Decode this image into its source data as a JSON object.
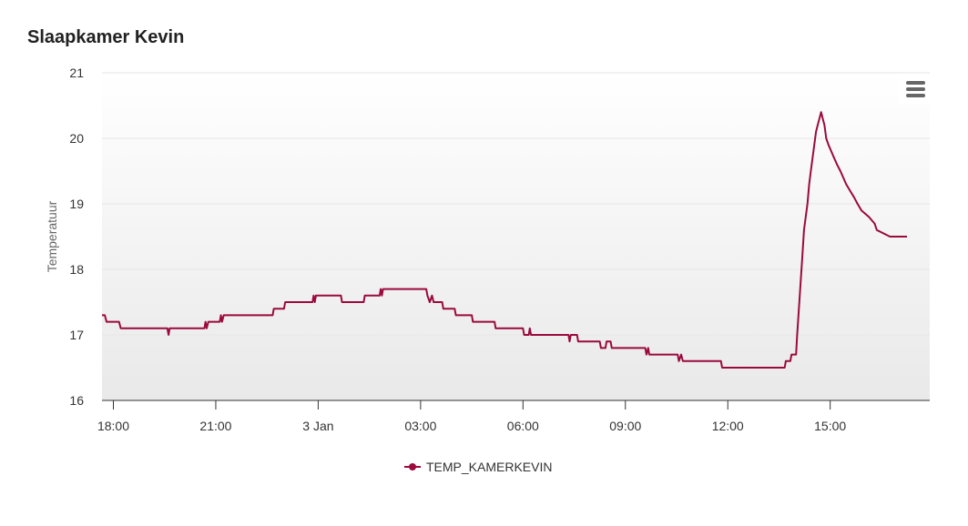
{
  "card": {
    "title": "Slaapkamer Kevin"
  },
  "menu": {
    "icon": "hamburger-menu-icon"
  },
  "colors": {
    "series": "#9a0a3d",
    "plot_bg_top": "#ffffff",
    "plot_bg_bottom": "#e9e9e9",
    "grid": "#e6e6e6",
    "axis": "#333333"
  },
  "chart_data": {
    "type": "line",
    "title": "Slaapkamer Kevin",
    "xlabel": "",
    "ylabel": "Temperatuur",
    "ylim": [
      16,
      21
    ],
    "yticks": [
      16,
      17,
      18,
      19,
      20,
      21
    ],
    "xlim": [
      "2024-01-02T17:40",
      "2024-01-03T17:55"
    ],
    "xticks": [
      {
        "t": "2024-01-02T18:00",
        "label": "18:00"
      },
      {
        "t": "2024-01-02T21:00",
        "label": "21:00"
      },
      {
        "t": "2024-01-03T00:00",
        "label": "3 Jan"
      },
      {
        "t": "2024-01-03T03:00",
        "label": "03:00"
      },
      {
        "t": "2024-01-03T06:00",
        "label": "06:00"
      },
      {
        "t": "2024-01-03T09:00",
        "label": "09:00"
      },
      {
        "t": "2024-01-03T12:00",
        "label": "12:00"
      },
      {
        "t": "2024-01-03T15:00",
        "label": "15:00"
      }
    ],
    "grid": true,
    "legend_position": "bottom-center",
    "series": [
      {
        "name": "TEMP_KAMERKEVIN",
        "points": [
          [
            "2024-01-02T17:40",
            17.3
          ],
          [
            "2024-01-02T17:45",
            17.3
          ],
          [
            "2024-01-02T17:48",
            17.2
          ],
          [
            "2024-01-02T18:10",
            17.2
          ],
          [
            "2024-01-02T18:13",
            17.1
          ],
          [
            "2024-01-02T19:35",
            17.1
          ],
          [
            "2024-01-02T19:37",
            17.0
          ],
          [
            "2024-01-02T19:39",
            17.1
          ],
          [
            "2024-01-02T20:40",
            17.1
          ],
          [
            "2024-01-02T20:42",
            17.2
          ],
          [
            "2024-01-02T20:44",
            17.1
          ],
          [
            "2024-01-02T20:47",
            17.2
          ],
          [
            "2024-01-02T21:07",
            17.2
          ],
          [
            "2024-01-02T21:09",
            17.3
          ],
          [
            "2024-01-02T21:11",
            17.2
          ],
          [
            "2024-01-02T21:14",
            17.3
          ],
          [
            "2024-01-02T22:40",
            17.3
          ],
          [
            "2024-01-02T22:42",
            17.4
          ],
          [
            "2024-01-02T23:00",
            17.4
          ],
          [
            "2024-01-02T23:02",
            17.5
          ],
          [
            "2024-01-02T23:50",
            17.5
          ],
          [
            "2024-01-02T23:52",
            17.6
          ],
          [
            "2024-01-02T23:54",
            17.5
          ],
          [
            "2024-01-02T23:56",
            17.6
          ],
          [
            "2024-01-03T00:40",
            17.6
          ],
          [
            "2024-01-03T00:42",
            17.5
          ],
          [
            "2024-01-03T01:20",
            17.5
          ],
          [
            "2024-01-03T01:22",
            17.6
          ],
          [
            "2024-01-03T01:48",
            17.6
          ],
          [
            "2024-01-03T01:50",
            17.7
          ],
          [
            "2024-01-03T01:52",
            17.6
          ],
          [
            "2024-01-03T01:54",
            17.7
          ],
          [
            "2024-01-03T03:10",
            17.7
          ],
          [
            "2024-01-03T03:12",
            17.6
          ],
          [
            "2024-01-03T03:16",
            17.5
          ],
          [
            "2024-01-03T03:20",
            17.6
          ],
          [
            "2024-01-03T03:23",
            17.5
          ],
          [
            "2024-01-03T03:38",
            17.5
          ],
          [
            "2024-01-03T03:40",
            17.4
          ],
          [
            "2024-01-03T04:00",
            17.4
          ],
          [
            "2024-01-03T04:02",
            17.3
          ],
          [
            "2024-01-03T04:30",
            17.3
          ],
          [
            "2024-01-03T04:32",
            17.2
          ],
          [
            "2024-01-03T05:10",
            17.2
          ],
          [
            "2024-01-03T05:12",
            17.1
          ],
          [
            "2024-01-03T06:00",
            17.1
          ],
          [
            "2024-01-03T06:02",
            17.0
          ],
          [
            "2024-01-03T06:10",
            17.0
          ],
          [
            "2024-01-03T06:12",
            17.1
          ],
          [
            "2024-01-03T06:14",
            17.0
          ],
          [
            "2024-01-03T07:20",
            17.0
          ],
          [
            "2024-01-03T07:22",
            16.9
          ],
          [
            "2024-01-03T07:24",
            17.0
          ],
          [
            "2024-01-03T07:35",
            17.0
          ],
          [
            "2024-01-03T07:37",
            16.9
          ],
          [
            "2024-01-03T08:15",
            16.9
          ],
          [
            "2024-01-03T08:17",
            16.8
          ],
          [
            "2024-01-03T08:25",
            16.8
          ],
          [
            "2024-01-03T08:27",
            16.9
          ],
          [
            "2024-01-03T08:34",
            16.9
          ],
          [
            "2024-01-03T08:36",
            16.8
          ],
          [
            "2024-01-03T09:35",
            16.8
          ],
          [
            "2024-01-03T09:37",
            16.7
          ],
          [
            "2024-01-03T09:40",
            16.8
          ],
          [
            "2024-01-03T09:42",
            16.7
          ],
          [
            "2024-01-03T10:32",
            16.7
          ],
          [
            "2024-01-03T10:34",
            16.6
          ],
          [
            "2024-01-03T10:38",
            16.7
          ],
          [
            "2024-01-03T10:41",
            16.6
          ],
          [
            "2024-01-03T11:48",
            16.6
          ],
          [
            "2024-01-03T11:50",
            16.5
          ],
          [
            "2024-01-03T13:40",
            16.5
          ],
          [
            "2024-01-03T13:42",
            16.6
          ],
          [
            "2024-01-03T13:50",
            16.6
          ],
          [
            "2024-01-03T13:52",
            16.7
          ],
          [
            "2024-01-03T14:00",
            16.7
          ],
          [
            "2024-01-03T14:02",
            17.0
          ],
          [
            "2024-01-03T14:05",
            17.4
          ],
          [
            "2024-01-03T14:08",
            17.8
          ],
          [
            "2024-01-03T14:11",
            18.2
          ],
          [
            "2024-01-03T14:14",
            18.6
          ],
          [
            "2024-01-03T14:17",
            18.8
          ],
          [
            "2024-01-03T14:20",
            19.0
          ],
          [
            "2024-01-03T14:23",
            19.3
          ],
          [
            "2024-01-03T14:26",
            19.5
          ],
          [
            "2024-01-03T14:29",
            19.7
          ],
          [
            "2024-01-03T14:32",
            19.9
          ],
          [
            "2024-01-03T14:35",
            20.1
          ],
          [
            "2024-01-03T14:38",
            20.2
          ],
          [
            "2024-01-03T14:41",
            20.3
          ],
          [
            "2024-01-03T14:44",
            20.4
          ],
          [
            "2024-01-03T14:47",
            20.3
          ],
          [
            "2024-01-03T14:50",
            20.2
          ],
          [
            "2024-01-03T14:53",
            20.0
          ],
          [
            "2024-01-03T14:57",
            19.9
          ],
          [
            "2024-01-03T15:02",
            19.8
          ],
          [
            "2024-01-03T15:07",
            19.7
          ],
          [
            "2024-01-03T15:12",
            19.6
          ],
          [
            "2024-01-03T15:18",
            19.5
          ],
          [
            "2024-01-03T15:28",
            19.3
          ],
          [
            "2024-01-03T15:35",
            19.2
          ],
          [
            "2024-01-03T15:42",
            19.1
          ],
          [
            "2024-01-03T15:48",
            19.0
          ],
          [
            "2024-01-03T15:55",
            18.9
          ],
          [
            "2024-01-03T16:08",
            18.8
          ],
          [
            "2024-01-03T16:18",
            18.7
          ],
          [
            "2024-01-03T16:22",
            18.6
          ],
          [
            "2024-01-03T16:45",
            18.5
          ],
          [
            "2024-01-03T17:15",
            18.5
          ]
        ]
      }
    ]
  }
}
